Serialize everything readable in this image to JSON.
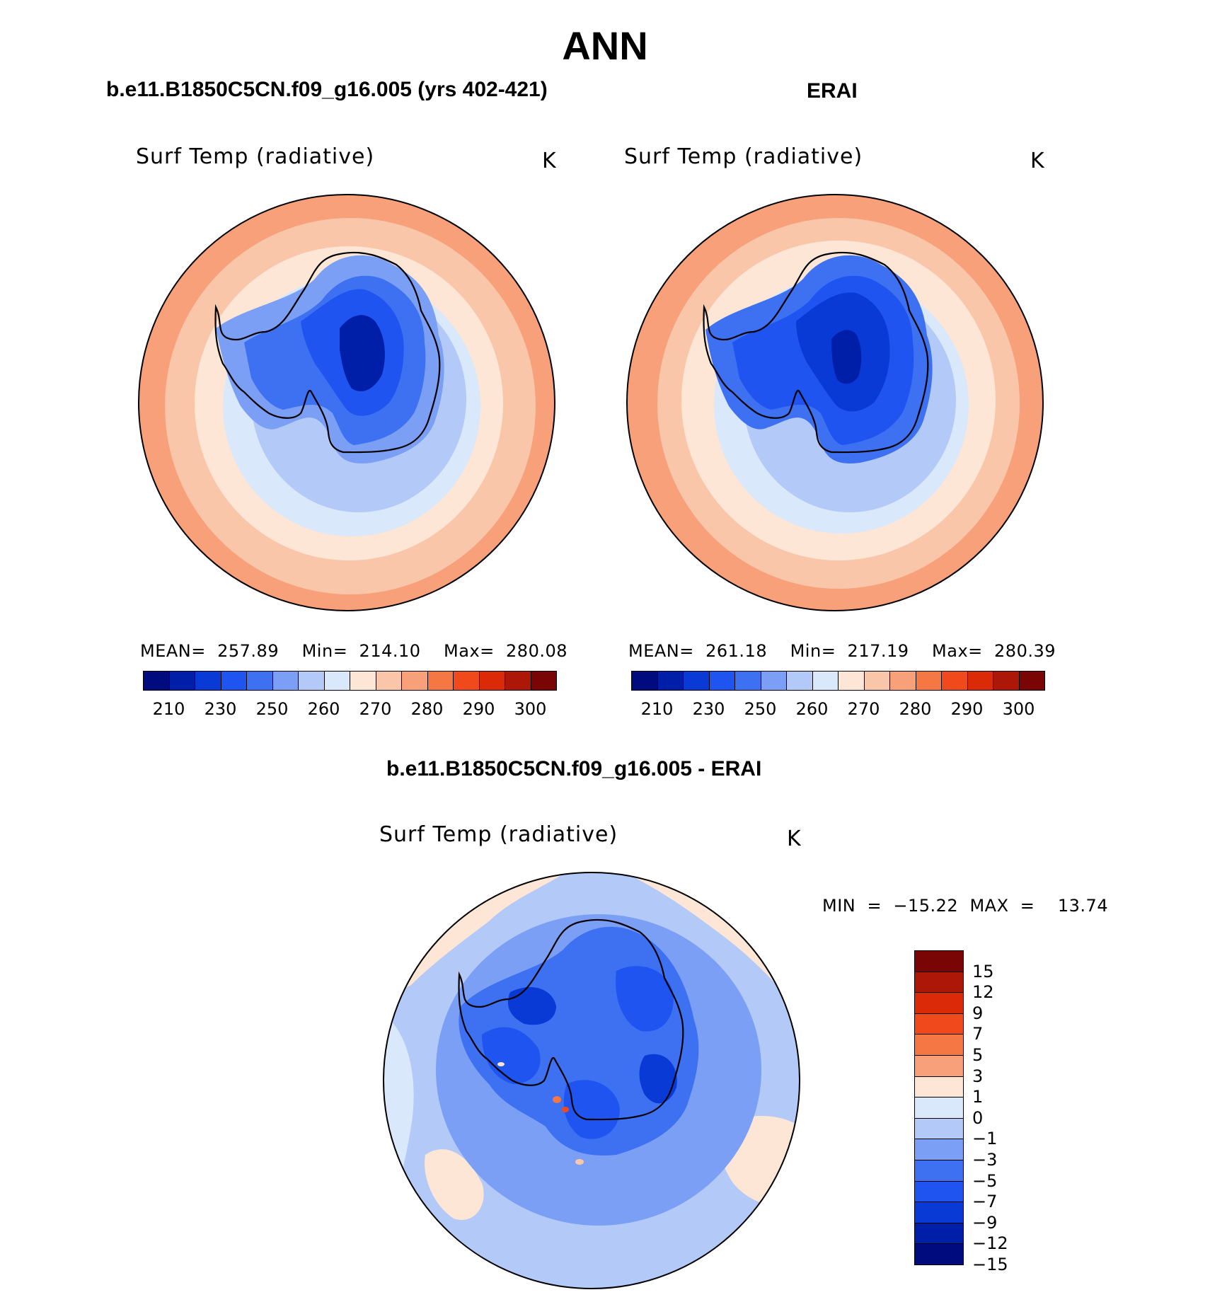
{
  "title": "ANN",
  "panels": [
    {
      "id": "model",
      "header": "b.e11.B1850C5CN.f09_g16.005 (yrs 402-421)",
      "variable": "Surf Temp (radiative)",
      "units": "K",
      "stats": "MEAN=  257.89    Min=  214.10    Max=  280.08"
    },
    {
      "id": "obs",
      "header": "ERAI",
      "variable": "Surf Temp (radiative)",
      "units": "K",
      "stats": "MEAN=  261.18    Min=  217.19    Max=  280.39"
    },
    {
      "id": "diff",
      "header": "b.e11.B1850C5CN.f09_g16.005 - ERAI",
      "variable": "Surf Temp (radiative)",
      "units": "K",
      "stats": "MIN  =  −15.22  MAX  =    13.74"
    }
  ],
  "abs_colorbar": {
    "colors": [
      "#000c7d",
      "#001fa8",
      "#0a3ad6",
      "#1f54f0",
      "#3d71f2",
      "#7a9ff5",
      "#b3c9f8",
      "#d9e8fb",
      "#fde6d6",
      "#f9c6aa",
      "#f7a07a",
      "#f47744",
      "#f04a1c",
      "#da2a07",
      "#ac1708",
      "#7a0505"
    ],
    "tick_labels": [
      "210",
      "230",
      "250",
      "260",
      "270",
      "280",
      "290",
      "300"
    ]
  },
  "diff_colorbar": {
    "colors": [
      "#7a0505",
      "#ac1708",
      "#da2a07",
      "#f04a1c",
      "#f47744",
      "#f7a07a",
      "#fde6d6",
      "#d9e8fb",
      "#b3c9f8",
      "#7a9ff5",
      "#3d71f2",
      "#1f54f0",
      "#0a3ad6",
      "#001fa8",
      "#000c7d"
    ],
    "tick_labels": [
      "15",
      "12",
      "9",
      "7",
      "5",
      "3",
      "1",
      "0",
      "−1",
      "−3",
      "−5",
      "−7",
      "−9",
      "−12",
      "−15"
    ]
  }
}
